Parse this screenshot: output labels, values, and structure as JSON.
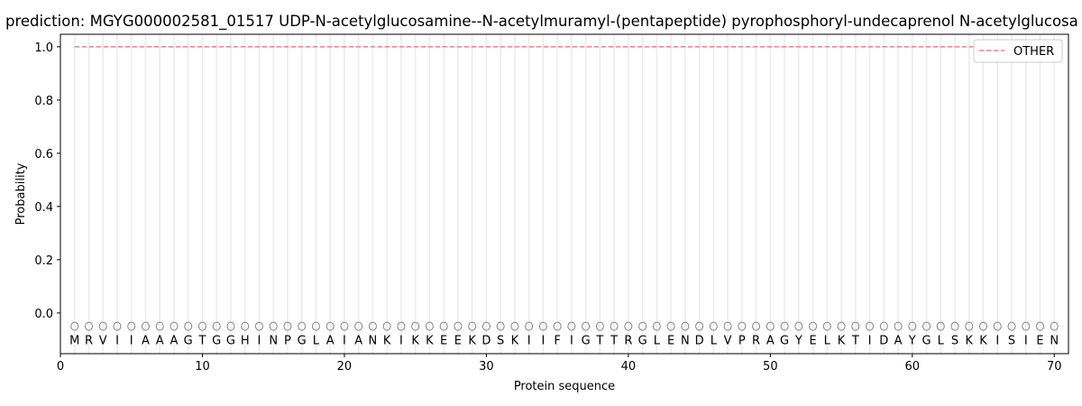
{
  "chart_data": {
    "type": "line",
    "title": "prediction: MGYG000002581_01517 UDP-N-acetylglucosamine--N-acetylmuramyl-(pentapeptide) pyrophosphoryl-undecaprenol N-acetylglucosa",
    "xlabel": "Protein sequence",
    "ylabel": "Probability",
    "xlim": [
      0,
      71
    ],
    "ylim": [
      -0.153,
      1.047
    ],
    "xticks": [
      0,
      10,
      20,
      30,
      40,
      50,
      60,
      70
    ],
    "yticks": [
      0.0,
      0.2,
      0.4,
      0.6,
      0.8,
      1.0
    ],
    "ytick_labels": [
      "0.0",
      "0.2",
      "0.4",
      "0.6",
      "0.8",
      "1.0"
    ],
    "grid": "vertical lines at each residue",
    "legend_placement": "top-right",
    "sequence": "MRVIIAAAGTGGHINPGLAIANKIKKEEKDSKIIFIGTTRGLENDLVPRAGYELKTIDAYGLSKKISIEN",
    "marker_y": -0.05,
    "letter_y": -0.1,
    "series": [
      {
        "name": "OTHER",
        "color": "#f08080",
        "style": "dashed",
        "x_start": 1,
        "x_end": 70,
        "value": 1.0
      }
    ],
    "marker_color": "#808080"
  }
}
